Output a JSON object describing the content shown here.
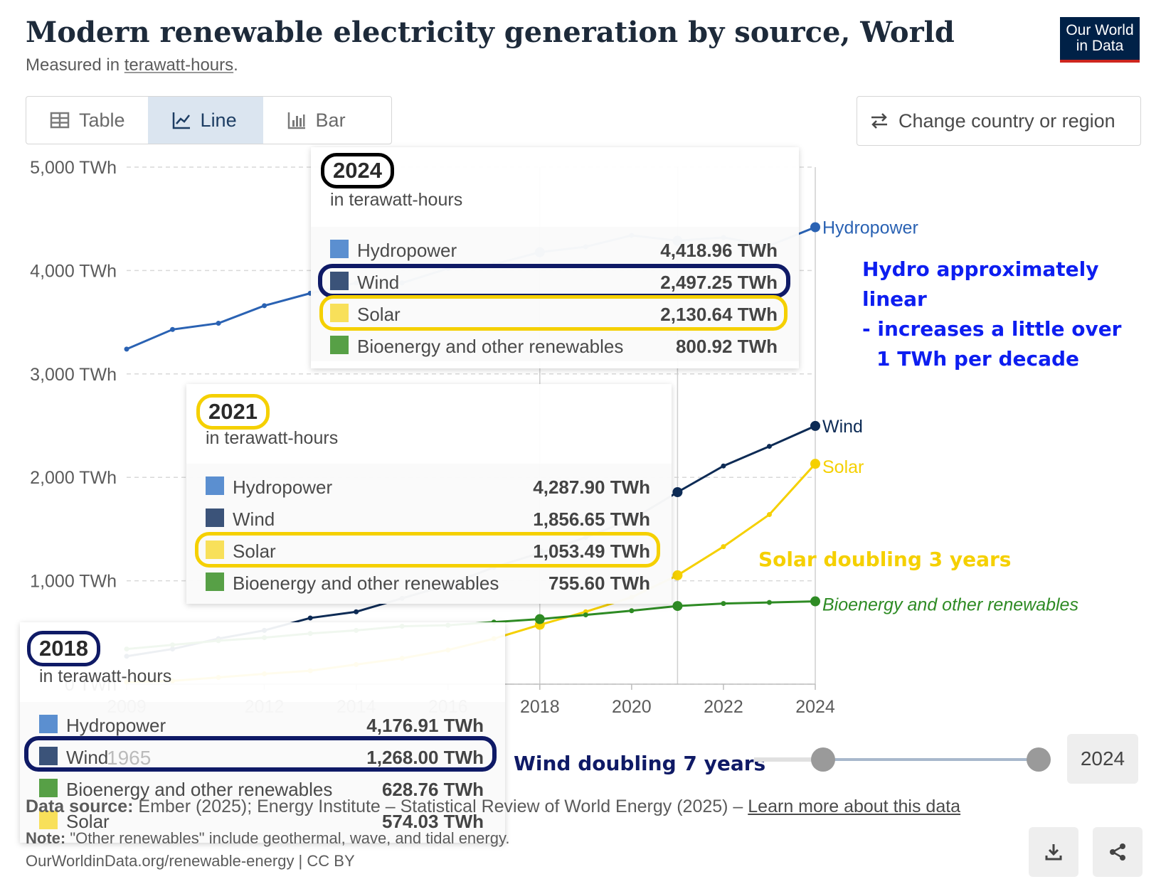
{
  "header": {
    "title": "Modern renewable electricity generation by source, World",
    "subtitle_prefix": "Measured in ",
    "subtitle_unit": "terawatt-hours",
    "subtitle_suffix": ".",
    "logo_line1": "Our World",
    "logo_line2": "in Data"
  },
  "tabs": [
    {
      "label": "Table",
      "icon": "table-icon"
    },
    {
      "label": "Line",
      "icon": "line-chart-icon",
      "active": true
    },
    {
      "label": "Bar",
      "icon": "bar-chart-icon"
    }
  ],
  "change_button": {
    "label": "Change country or region",
    "icon": "swap-arrows-icon"
  },
  "colors": {
    "hydro": "#2a62b3",
    "wind": "#0d2b55",
    "solar": "#f5d000",
    "bio": "#2e8b24",
    "hydro_swatch": "#5b8fd0",
    "wind_swatch": "#3b5379",
    "solar_swatch": "#f8e05a",
    "bio_swatch": "#57a046",
    "annot_blue": "#0d1ef0",
    "annot_navy": "#0f1a66",
    "annot_yellow": "#f5d000"
  },
  "chart_data": {
    "type": "line",
    "title": "Modern renewable electricity generation by source, World",
    "ylabel": "TWh",
    "ylim": [
      0,
      5000
    ],
    "y_ticks": [
      0,
      1000,
      2000,
      3000,
      4000,
      5000
    ],
    "y_tick_labels": [
      "0 TWh",
      "1,000 TWh",
      "2,000 TWh",
      "3,000 TWh",
      "4,000 TWh",
      "5,000 TWh"
    ],
    "x_ticks": [
      2009,
      2012,
      2014,
      2016,
      2018,
      2020,
      2022,
      2024
    ],
    "x": [
      2009,
      2010,
      2011,
      2012,
      2013,
      2014,
      2015,
      2016,
      2017,
      2018,
      2019,
      2020,
      2021,
      2022,
      2023,
      2024
    ],
    "series": [
      {
        "name": "Hydropower",
        "key": "hydro",
        "values": [
          3240,
          3430,
          3490,
          3660,
          3780,
          3880,
          3880,
          4020,
          4060,
          4177,
          4230,
          4340,
          4288,
          4320,
          4240,
          4419
        ]
      },
      {
        "name": "Wind",
        "key": "wind",
        "values": [
          270,
          340,
          440,
          520,
          640,
          700,
          830,
          960,
          1130,
          1268,
          1420,
          1590,
          1857,
          2110,
          2300,
          2497
        ]
      },
      {
        "name": "Solar",
        "key": "solar",
        "values": [
          20,
          32,
          65,
          100,
          130,
          190,
          250,
          330,
          440,
          574,
          700,
          840,
          1053,
          1330,
          1640,
          2131
        ]
      },
      {
        "name": "Bioenergy and other renewables",
        "key": "bio",
        "values": [
          340,
          380,
          420,
          450,
          490,
          520,
          560,
          570,
          600,
          629,
          670,
          710,
          756,
          780,
          790,
          801
        ]
      }
    ],
    "end_labels": [
      "Hydropower",
      "Wind",
      "Solar",
      "Bioenergy and other renewables"
    ],
    "highlight_years": [
      2018,
      2021,
      2024
    ]
  },
  "tooltips": [
    {
      "id": "2024",
      "year": "2024",
      "unit": "in terawatt-hours",
      "rows": [
        {
          "name": "Hydropower",
          "value": "4,418.96 TWh",
          "swatch": "hydro_swatch"
        },
        {
          "name": "Wind",
          "value": "2,497.25 TWh",
          "swatch": "wind_swatch"
        },
        {
          "name": "Solar",
          "value": "2,130.64 TWh",
          "swatch": "solar_swatch"
        },
        {
          "name": "Bioenergy and other renewables",
          "value": "800.92 TWh",
          "swatch": "bio_swatch"
        }
      ]
    },
    {
      "id": "2021",
      "year": "2021",
      "unit": "in terawatt-hours",
      "rows": [
        {
          "name": "Hydropower",
          "value": "4,287.90 TWh",
          "swatch": "hydro_swatch"
        },
        {
          "name": "Wind",
          "value": "1,856.65 TWh",
          "swatch": "wind_swatch"
        },
        {
          "name": "Solar",
          "value": "1,053.49 TWh",
          "swatch": "solar_swatch"
        },
        {
          "name": "Bioenergy and other renewables",
          "value": "755.60 TWh",
          "swatch": "bio_swatch"
        }
      ]
    },
    {
      "id": "2018",
      "year": "2018",
      "unit": "in terawatt-hours",
      "rows": [
        {
          "name": "Hydropower",
          "value": "4,176.91 TWh",
          "swatch": "hydro_swatch"
        },
        {
          "name": "Wind",
          "value": "1,268.00 TWh",
          "swatch": "wind_swatch"
        },
        {
          "name": "Bioenergy and other renewables",
          "value": "628.76 TWh",
          "swatch": "bio_swatch"
        },
        {
          "name": "Solar",
          "value": "574.03 TWh",
          "swatch": "solar_swatch"
        }
      ]
    }
  ],
  "annotations": {
    "hydro_line1": "Hydro approximately",
    "hydro_line2": "linear",
    "hydro_line3": "- increases a little over",
    "hydro_line4": "1 TWh per decade",
    "solar": "Solar doubling 3 years",
    "wind": "Wind doubling 7 years"
  },
  "timeline": {
    "start_year": "1965",
    "end_year": "2024"
  },
  "footer": {
    "source_label": "Data source:",
    "source_text": " Ember (2025); Energy Institute – Statistical Review of World Energy (2025) – ",
    "learn_more": "Learn more about this data",
    "note_label": "Note:",
    "note_text": " \"Other renewables\" include geothermal, wave, and tidal energy.",
    "url": "OurWorldinData.org/renewable-energy | CC BY"
  }
}
